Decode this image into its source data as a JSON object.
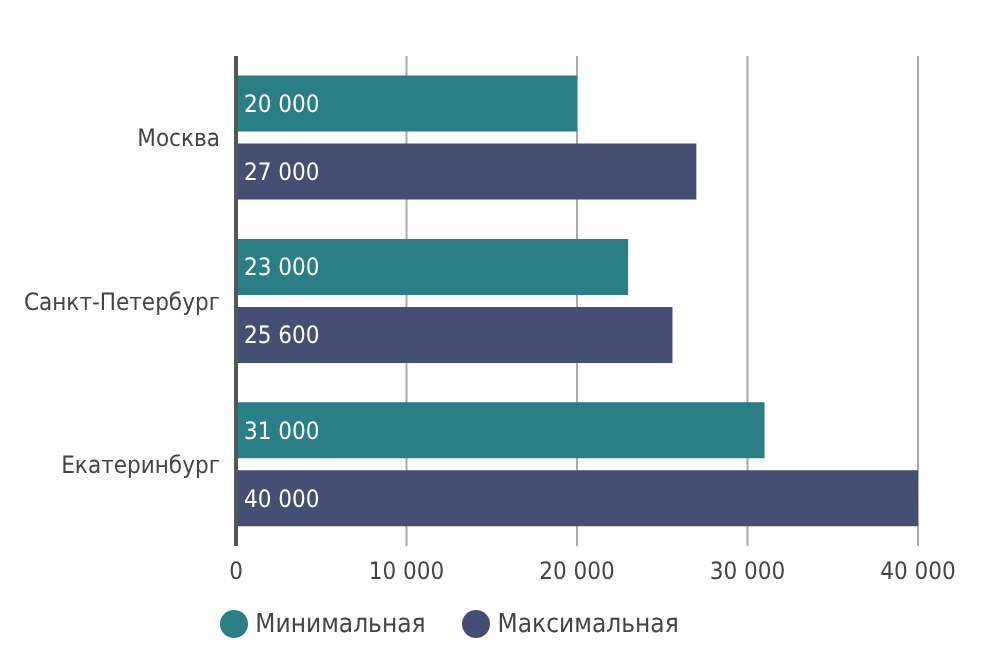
{
  "chart_data": {
    "type": "bar",
    "orientation": "horizontal",
    "categories": [
      "Москва",
      "Санкт-Петербург",
      "Екатеринбург"
    ],
    "series": [
      {
        "name": "Минимальная",
        "color": "#2a7f86",
        "values": [
          20000,
          23000,
          31000
        ],
        "value_labels": [
          "20 000",
          "23 000",
          "31 000"
        ]
      },
      {
        "name": "Максимальная",
        "color": "#454f74",
        "values": [
          27000,
          25600,
          40000
        ],
        "value_labels": [
          "27 000",
          "25 600",
          "40 000"
        ]
      }
    ],
    "xlim": [
      0,
      40000
    ],
    "xticks": [
      0,
      {
        "value": 10000,
        "label": "10 000"
      },
      {
        "value": 20000,
        "label": "20 000"
      },
      {
        "value": 30000,
        "label": "30 000"
      },
      {
        "value": 40000,
        "label": "40 000"
      }
    ],
    "grid": "x",
    "legend": "bottom"
  }
}
